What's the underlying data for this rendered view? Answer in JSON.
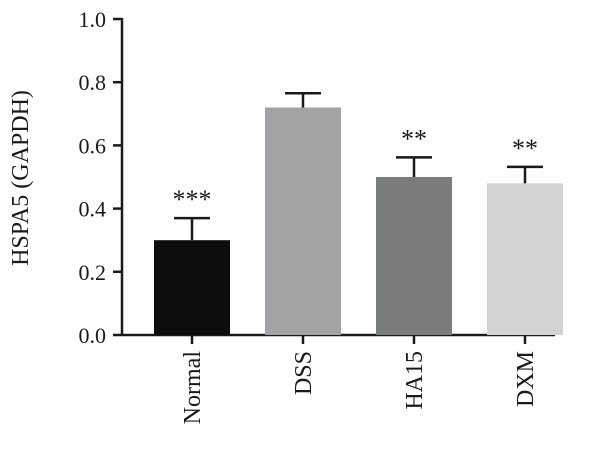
{
  "chart_data": {
    "type": "bar",
    "title": "",
    "xlabel": "",
    "ylabel": "HSPA5 (GAPDH)",
    "ylim": [
      0,
      1.0
    ],
    "yticks": [
      "0.0",
      "0.2",
      "0.4",
      "0.6",
      "0.8",
      "1.0"
    ],
    "categories": [
      "Normal",
      "DSS",
      "HA15",
      "DXM"
    ],
    "values": [
      0.3,
      0.72,
      0.5,
      0.48
    ],
    "errors": [
      0.07,
      0.045,
      0.062,
      0.052
    ],
    "significance": [
      "***",
      "",
      "**",
      "**"
    ],
    "colors": [
      "#0d0d0d",
      "#a3a3a6",
      "#7a7c7b",
      "#d3d3d3"
    ],
    "grid": false,
    "legend": "none"
  }
}
